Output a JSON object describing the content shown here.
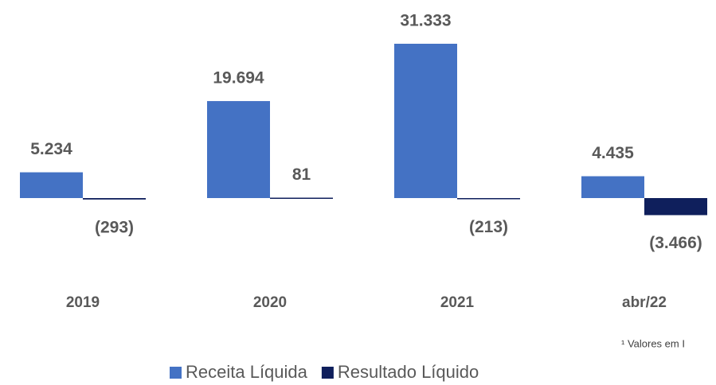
{
  "chart_data": {
    "type": "bar",
    "categories": [
      "2019",
      "2020",
      "2021",
      "abr/22"
    ],
    "series": [
      {
        "name": "Receita Líquida",
        "color": "#4472c4",
        "values": [
          5234,
          19694,
          31333,
          4435
        ],
        "value_labels": [
          "5.234",
          "19.694",
          "31.333",
          "4.435"
        ]
      },
      {
        "name": "Resultado Líquido",
        "color": "#0f1f5c",
        "values": [
          -293,
          81,
          -213,
          -3466
        ],
        "value_labels": [
          "(293)",
          "81",
          "(213)",
          "(3.466)"
        ]
      }
    ],
    "footnote": "¹ Valores em I"
  }
}
